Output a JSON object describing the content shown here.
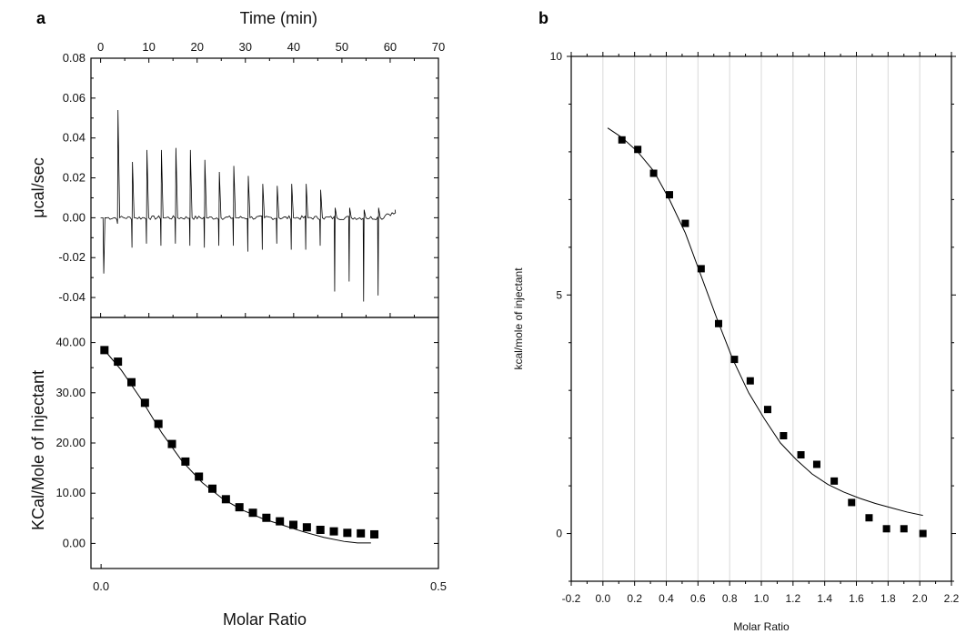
{
  "chart_data": [
    {
      "panel": "a",
      "type": "line",
      "xlabel": "Time (min)",
      "ylabel": "μcal/sec",
      "xlim": [
        -2,
        70
      ],
      "ylim": [
        -0.05,
        0.08
      ],
      "xticks": [
        0,
        10,
        20,
        30,
        40,
        50,
        60,
        70
      ],
      "yticks": [
        -0.04,
        -0.02,
        0.0,
        0.02,
        0.04,
        0.06,
        0.08
      ],
      "ytick_labels": [
        "-0.04",
        "-0.02",
        "0.00",
        "0.02",
        "0.04",
        "0.06",
        "0.08"
      ],
      "injections": [
        {
          "t": 3.5,
          "up": 0.054,
          "down": -0.003
        },
        {
          "t": 6.5,
          "up": 0.028,
          "down": -0.015
        },
        {
          "t": 9.5,
          "up": 0.034,
          "down": -0.013
        },
        {
          "t": 12.5,
          "up": 0.034,
          "down": -0.014
        },
        {
          "t": 15.5,
          "up": 0.035,
          "down": -0.013
        },
        {
          "t": 18.5,
          "up": 0.034,
          "down": -0.014
        },
        {
          "t": 21.5,
          "up": 0.029,
          "down": -0.015
        },
        {
          "t": 24.5,
          "up": 0.023,
          "down": -0.014
        },
        {
          "t": 27.5,
          "up": 0.026,
          "down": -0.014
        },
        {
          "t": 30.5,
          "up": 0.021,
          "down": -0.017
        },
        {
          "t": 33.5,
          "up": 0.017,
          "down": -0.016
        },
        {
          "t": 36.5,
          "up": 0.016,
          "down": -0.013
        },
        {
          "t": 39.5,
          "up": 0.017,
          "down": -0.016
        },
        {
          "t": 42.5,
          "up": 0.017,
          "down": -0.016
        },
        {
          "t": 45.5,
          "up": 0.014,
          "down": -0.014
        },
        {
          "t": 48.5,
          "up": 0.005,
          "down": -0.037
        },
        {
          "t": 51.5,
          "up": 0.005,
          "down": -0.032
        },
        {
          "t": 54.5,
          "up": 0.004,
          "down": -0.042
        },
        {
          "t": 57.5,
          "up": 0.005,
          "down": -0.039
        }
      ],
      "initial_spike": {
        "t": 0.5,
        "down": -0.028
      },
      "baseline_end_t": 61
    },
    {
      "panel": "a",
      "type": "scatter",
      "xlabel": "Molar Ratio",
      "ylabel": "KCal/Mole of Injectant",
      "xlim": [
        -0.015,
        0.5
      ],
      "ylim": [
        -5,
        45
      ],
      "xticks": [
        0.0,
        0.5
      ],
      "xtick_labels": [
        "0.0",
        "0.5"
      ],
      "yticks": [
        0,
        10,
        20,
        30,
        40
      ],
      "ytick_labels": [
        "0.00",
        "10.00",
        "20.00",
        "30.00",
        "40.00"
      ],
      "points": {
        "x": [
          0.005,
          0.025,
          0.045,
          0.065,
          0.085,
          0.105,
          0.125,
          0.145,
          0.165,
          0.185,
          0.205,
          0.225,
          0.245,
          0.265,
          0.285,
          0.305,
          0.325,
          0.345,
          0.365,
          0.385,
          0.405
        ],
        "y": [
          38.5,
          36.2,
          32.1,
          28.0,
          23.8,
          19.8,
          16.3,
          13.3,
          10.9,
          8.8,
          7.2,
          6.1,
          5.1,
          4.4,
          3.7,
          3.2,
          2.7,
          2.4,
          2.1,
          2.0,
          1.8
        ]
      },
      "fit": {
        "x": [
          0.005,
          0.03,
          0.06,
          0.09,
          0.12,
          0.15,
          0.18,
          0.21,
          0.24,
          0.27,
          0.3,
          0.33,
          0.36,
          0.38,
          0.4
        ],
        "y": [
          38.5,
          34.5,
          28.6,
          22.0,
          16.4,
          12.1,
          8.9,
          6.6,
          4.9,
          3.6,
          2.3,
          1.2,
          0.4,
          0.1,
          0.1
        ]
      }
    },
    {
      "panel": "b",
      "type": "scatter",
      "xlabel": "Molar Ratio",
      "ylabel": "kcal/mole of injectant",
      "xlim": [
        -0.2,
        2.2
      ],
      "ylim": [
        -1,
        10
      ],
      "xticks": [
        -0.2,
        0.0,
        0.2,
        0.4,
        0.6,
        0.8,
        1.0,
        1.2,
        1.4,
        1.6,
        1.8,
        2.0,
        2.2
      ],
      "xtick_labels": [
        "-0.2",
        "0.0",
        "0.2",
        "0.4",
        "0.6",
        "0.8",
        "1.0",
        "1.2",
        "1.4",
        "1.6",
        "1.8",
        "2.0",
        "2.2"
      ],
      "yticks": [
        0,
        5,
        10
      ],
      "ytick_labels": [
        "0",
        "5",
        "10"
      ],
      "grid": "vertical",
      "points": {
        "x": [
          0.12,
          0.22,
          0.32,
          0.42,
          0.52,
          0.62,
          0.73,
          0.83,
          0.93,
          1.04,
          1.14,
          1.25,
          1.35,
          1.46,
          1.57,
          1.68,
          1.79,
          1.9,
          2.02
        ],
        "y": [
          8.25,
          8.05,
          7.55,
          7.1,
          6.5,
          5.55,
          4.4,
          3.65,
          3.2,
          2.6,
          2.05,
          1.65,
          1.45,
          1.1,
          0.65,
          0.33,
          0.1,
          0.1,
          0.0
        ]
      },
      "fit": {
        "x": [
          0.03,
          0.12,
          0.22,
          0.32,
          0.42,
          0.52,
          0.62,
          0.72,
          0.82,
          0.92,
          1.02,
          1.12,
          1.22,
          1.32,
          1.42,
          1.52,
          1.62,
          1.72,
          1.82,
          1.92,
          2.02
        ],
        "y": [
          8.5,
          8.3,
          8.0,
          7.6,
          7.0,
          6.3,
          5.4,
          4.5,
          3.65,
          2.95,
          2.4,
          1.9,
          1.55,
          1.25,
          1.03,
          0.87,
          0.74,
          0.63,
          0.54,
          0.45,
          0.38
        ]
      }
    }
  ],
  "panel_labels": [
    "a",
    "b"
  ]
}
